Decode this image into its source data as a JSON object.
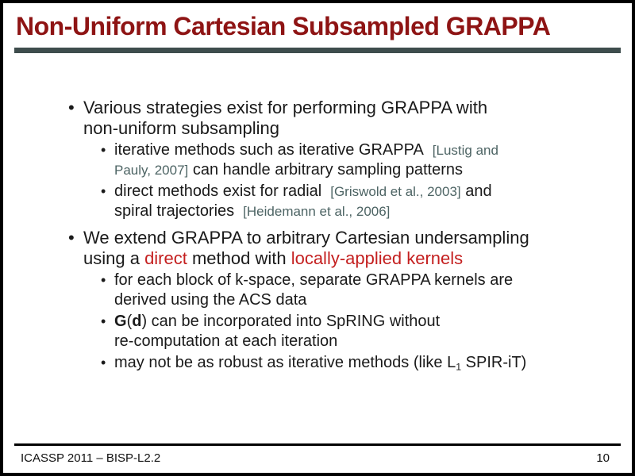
{
  "slide": {
    "title": "Non-Uniform Cartesian Subsampled GRAPPA",
    "bullet_glyph": "•",
    "colors": {
      "title_red": "#8e1414",
      "accent_red": "#c41f1f",
      "citation_slate": "#4d6464",
      "rule_slate": "#3e4d4d",
      "text": "#1a1a1a"
    },
    "footer": {
      "left": "ICASSP 2011 – BISP-L2.2",
      "page": "10"
    },
    "bullets": [
      {
        "level": 1,
        "segments": [
          {
            "t": "Various strategies exist for performing GRAPPA with"
          },
          {
            "br": true
          },
          {
            "t": "non-uniform subsampling"
          }
        ]
      },
      {
        "level": 2,
        "segments": [
          {
            "t": "iterative methods such as iterative GRAPPA"
          },
          {
            "t": "[Lustig and",
            "style": "cite",
            "gap": true
          },
          {
            "br": true
          },
          {
            "t": "Pauly, 2007]",
            "style": "cite"
          },
          {
            "t": " can handle arbitrary sampling patterns"
          }
        ]
      },
      {
        "level": 2,
        "segments": [
          {
            "t": "direct methods exist for radial"
          },
          {
            "t": "[Griswold et al., 2003]",
            "style": "cite",
            "gap": true
          },
          {
            "t": " and"
          },
          {
            "br": true
          },
          {
            "t": "spiral trajectories"
          },
          {
            "t": "[Heidemann et al., 2006]",
            "style": "cite",
            "gap": true
          }
        ]
      },
      {
        "level": 1,
        "segments": [
          {
            "t": "We extend GRAPPA to arbitrary Cartesian undersampling"
          },
          {
            "br": true
          },
          {
            "t": "using a "
          },
          {
            "t": "direct",
            "style": "red"
          },
          {
            "t": " method with "
          },
          {
            "t": "locally-applied kernels",
            "style": "red"
          }
        ]
      },
      {
        "level": 2,
        "segments": [
          {
            "t": "for each block of k-space, separate GRAPPA kernels are"
          },
          {
            "br": true
          },
          {
            "t": "derived using the ACS data"
          }
        ]
      },
      {
        "level": 2,
        "segments": [
          {
            "t": "G",
            "style": "bold"
          },
          {
            "t": "("
          },
          {
            "t": "d",
            "style": "bold"
          },
          {
            "t": ") can be incorporated into SpRING without"
          },
          {
            "br": true
          },
          {
            "t": "re-computation at each iteration"
          }
        ]
      },
      {
        "level": 2,
        "segments": [
          {
            "t": "may not be as robust as iterative methods (like L"
          },
          {
            "t": "1",
            "style": "sub"
          },
          {
            "t": " SPIR-iT)"
          }
        ]
      }
    ]
  }
}
